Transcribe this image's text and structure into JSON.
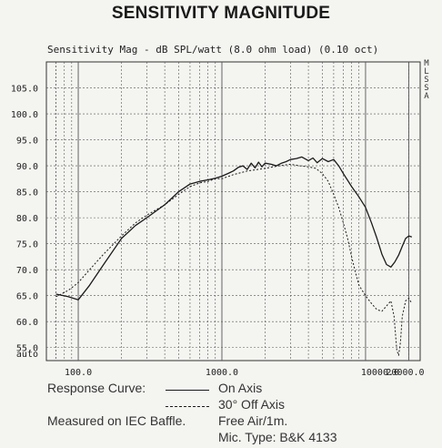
{
  "title": "SENSITIVITY MAGNITUDE",
  "subtitle": "Sensitivity Mag - dB SPL/watt (8.0 ohm load) (0.10 oct)",
  "side_label": "MLSSA",
  "legend": {
    "response_label": "Response Curve:",
    "on_axis": "On Axis",
    "off_axis": "30° Off Axis",
    "measured_label": "Measured on IEC Baffle.",
    "measured_value": "Free Air/1m.",
    "mic": "Mic. Type: B&K 4133"
  },
  "colors": {
    "line": "#1a1a1a",
    "grid": "#555555"
  },
  "chart_data": {
    "type": "line",
    "title": "SENSITIVITY MAGNITUDE",
    "x_scale": "log",
    "xlim": [
      60,
      24000
    ],
    "ylim": [
      52.5,
      110
    ],
    "grid": true,
    "y_ticks": [
      "105.0",
      "100.0",
      "95.0",
      "90.0",
      "85.0",
      "80.0",
      "75.0",
      "70.0",
      "65.0",
      "60.0",
      "55.0",
      "auto"
    ],
    "x_ticks": [
      "100.0",
      "1000.0",
      "10000.0",
      "20000.0"
    ],
    "series": [
      {
        "name": "On Axis",
        "style": "solid",
        "points": [
          [
            70,
            65.3
          ],
          [
            85,
            64.8
          ],
          [
            100,
            64.2
          ],
          [
            120,
            67
          ],
          [
            150,
            71
          ],
          [
            200,
            76
          ],
          [
            250,
            78.5
          ],
          [
            300,
            80
          ],
          [
            400,
            82.5
          ],
          [
            500,
            85
          ],
          [
            600,
            86.5
          ],
          [
            700,
            87
          ],
          [
            800,
            87.3
          ],
          [
            900,
            87.6
          ],
          [
            1000,
            88
          ],
          [
            1100,
            88.5
          ],
          [
            1200,
            89
          ],
          [
            1300,
            89.7
          ],
          [
            1400,
            90
          ],
          [
            1500,
            89.3
          ],
          [
            1600,
            90.5
          ],
          [
            1700,
            89.6
          ],
          [
            1800,
            90.7
          ],
          [
            1900,
            89.8
          ],
          [
            2000,
            90.5
          ],
          [
            2200,
            90.3
          ],
          [
            2400,
            90
          ],
          [
            2600,
            90.5
          ],
          [
            2800,
            90.8
          ],
          [
            3000,
            91.2
          ],
          [
            3300,
            91.4
          ],
          [
            3600,
            91.7
          ],
          [
            4000,
            91
          ],
          [
            4300,
            91.5
          ],
          [
            4600,
            90.6
          ],
          [
            5000,
            91.4
          ],
          [
            5500,
            90.8
          ],
          [
            6000,
            91.2
          ],
          [
            6500,
            90
          ],
          [
            7000,
            88.5
          ],
          [
            8000,
            86
          ],
          [
            9000,
            84
          ],
          [
            10000,
            82
          ],
          [
            11000,
            79
          ],
          [
            12000,
            76
          ],
          [
            13000,
            73
          ],
          [
            14000,
            71
          ],
          [
            15000,
            70.5
          ],
          [
            16000,
            71.5
          ],
          [
            17000,
            72.8
          ],
          [
            18000,
            74.5
          ],
          [
            19000,
            76
          ],
          [
            20000,
            76.5
          ],
          [
            21000,
            76.3
          ]
        ]
      },
      {
        "name": "30° Off Axis",
        "style": "dashed",
        "points": [
          [
            70,
            64.8
          ],
          [
            85,
            66
          ],
          [
            100,
            67.5
          ],
          [
            120,
            70
          ],
          [
            150,
            73
          ],
          [
            200,
            76.5
          ],
          [
            250,
            79
          ],
          [
            300,
            80.5
          ],
          [
            400,
            82.5
          ],
          [
            500,
            84.5
          ],
          [
            600,
            86
          ],
          [
            700,
            86.7
          ],
          [
            800,
            87
          ],
          [
            900,
            87.5
          ],
          [
            1000,
            87.5
          ],
          [
            1200,
            88.3
          ],
          [
            1500,
            89
          ],
          [
            2000,
            89.5
          ],
          [
            2500,
            90
          ],
          [
            3000,
            90.3
          ],
          [
            3500,
            90
          ],
          [
            4000,
            89.8
          ],
          [
            4500,
            89.5
          ],
          [
            5000,
            88.5
          ],
          [
            5500,
            87
          ],
          [
            6000,
            84.5
          ],
          [
            6500,
            82
          ],
          [
            7000,
            79
          ],
          [
            7500,
            76
          ],
          [
            8000,
            72.5
          ],
          [
            8500,
            69.5
          ],
          [
            9000,
            67
          ],
          [
            10000,
            65
          ],
          [
            11000,
            63.5
          ],
          [
            12000,
            62.3
          ],
          [
            13000,
            62
          ],
          [
            14000,
            63
          ],
          [
            15000,
            64
          ],
          [
            15800,
            61
          ],
          [
            16500,
            54.5
          ],
          [
            17000,
            53.5
          ],
          [
            17500,
            56
          ],
          [
            18000,
            61
          ],
          [
            19000,
            64
          ],
          [
            20000,
            64.5
          ],
          [
            21000,
            63.5
          ]
        ]
      }
    ]
  }
}
